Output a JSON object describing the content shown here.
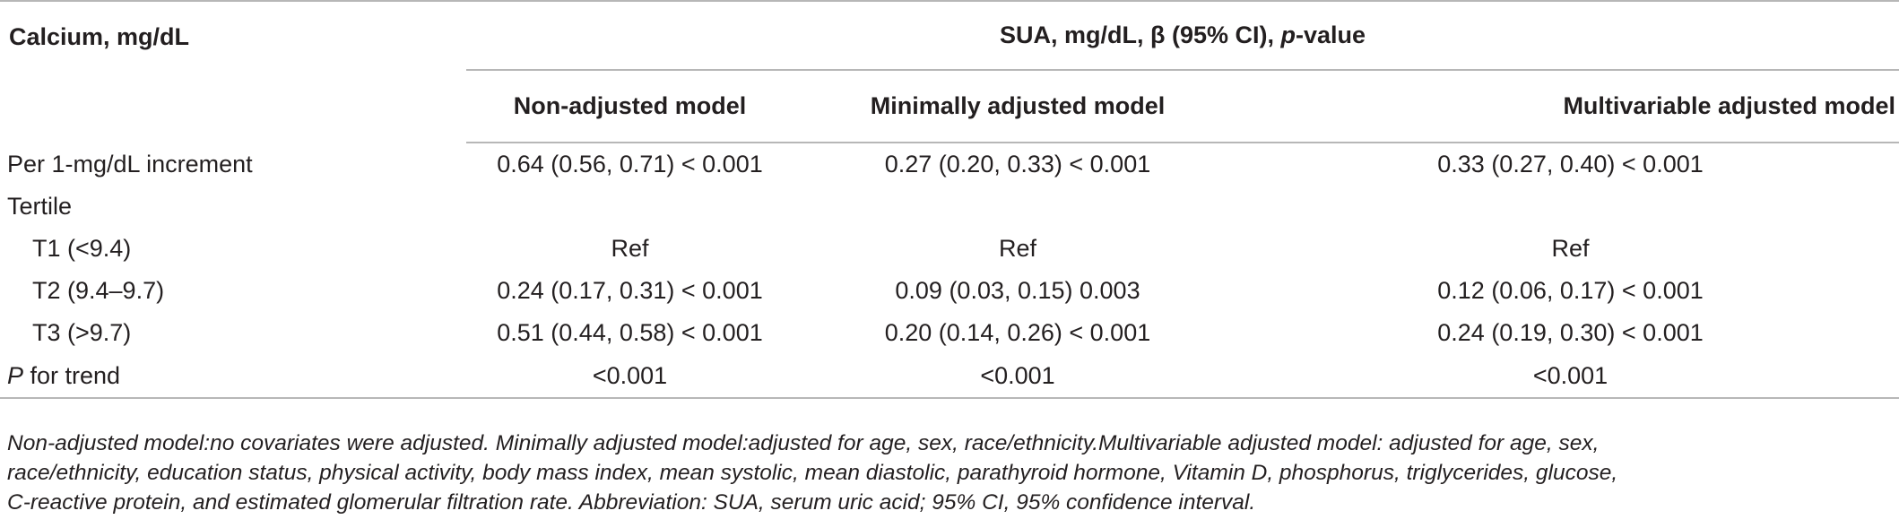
{
  "table": {
    "row_header": "Calcium, mg/dL",
    "span_header_prefix": "SUA, mg/dL, β (95% CI), ",
    "span_header_italic": "p",
    "span_header_suffix": "-value",
    "columns": [
      "Non-adjusted model",
      "Minimally adjusted model",
      "Multivariable adjusted model"
    ],
    "rows": [
      {
        "label": "Per 1-mg/dL increment",
        "indent": false,
        "values": [
          "0.64 (0.56, 0.71) < 0.001",
          "0.27 (0.20, 0.33) < 0.001",
          "0.33 (0.27, 0.40) < 0.001"
        ]
      },
      {
        "label": "Tertile",
        "indent": false,
        "values": [
          "",
          "",
          ""
        ]
      },
      {
        "label": "T1 (<9.4)",
        "indent": true,
        "values": [
          "Ref",
          "Ref",
          "Ref"
        ]
      },
      {
        "label": "T2 (9.4–9.7)",
        "indent": true,
        "values": [
          "0.24 (0.17, 0.31) < 0.001",
          "0.09 (0.03, 0.15) 0.003",
          "0.12 (0.06, 0.17) < 0.001"
        ]
      },
      {
        "label": "T3 (>9.7)",
        "indent": true,
        "values": [
          "0.51 (0.44, 0.58) < 0.001",
          "0.20 (0.14, 0.26) < 0.001",
          "0.24 (0.19, 0.30) < 0.001"
        ]
      }
    ],
    "trend_row": {
      "label_italic": "P",
      "label_rest": " for trend",
      "values": [
        "<0.001",
        "<0.001",
        "<0.001"
      ]
    }
  },
  "footnote": {
    "lines": [
      "Non-adjusted model:no covariates were adjusted. Minimally adjusted model:adjusted for age, sex, race/ethnicity.Multivariable adjusted model: adjusted for age, sex,",
      "race/ethnicity, education status, physical activity, body mass index, mean systolic, mean diastolic, parathyroid hormone, Vitamin D, phosphorus, triglycerides, glucose,",
      "C-reactive protein, and estimated glomerular filtration rate. Abbreviation: SUA, serum uric acid; 95% CI, 95% confidence interval."
    ]
  }
}
